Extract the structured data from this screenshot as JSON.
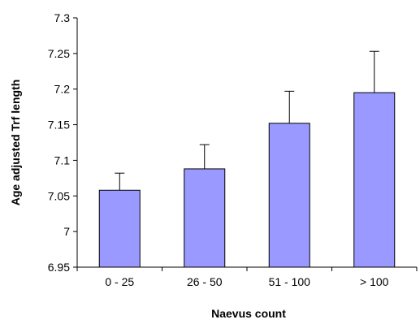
{
  "chart_data": {
    "type": "bar",
    "categories": [
      "0 - 25",
      "26 - 50",
      "51 - 100",
      "> 100"
    ],
    "values": [
      7.058,
      7.088,
      7.152,
      7.195
    ],
    "error_upper": [
      7.082,
      7.122,
      7.197,
      7.253
    ],
    "xlabel": "Naevus count",
    "ylabel": "Age adjusted Trf length",
    "ylim": [
      6.95,
      7.3
    ],
    "yticks": [
      6.95,
      7,
      7.05,
      7.1,
      7.15,
      7.2,
      7.25,
      7.3
    ],
    "ytick_labels": [
      "6.95",
      "7",
      "7.05",
      "7.1",
      "7.15",
      "7.2",
      "7.25",
      "7.3"
    ],
    "grid": false,
    "bar_color": "#9999ff"
  }
}
